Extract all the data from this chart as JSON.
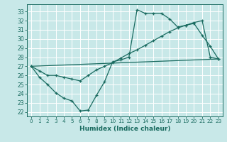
{
  "xlabel": "Humidex (Indice chaleur)",
  "bg_color": "#c8e8e8",
  "grid_color": "#ffffff",
  "line_color": "#1a6b60",
  "xlim": [
    -0.5,
    23.5
  ],
  "ylim": [
    21.5,
    33.8
  ],
  "yticks": [
    22,
    23,
    24,
    25,
    26,
    27,
    28,
    29,
    30,
    31,
    32,
    33
  ],
  "xticks": [
    0,
    1,
    2,
    3,
    4,
    5,
    6,
    7,
    8,
    9,
    10,
    11,
    12,
    13,
    14,
    15,
    16,
    17,
    18,
    19,
    20,
    21,
    22,
    23
  ],
  "line1_x": [
    0,
    1,
    2,
    3,
    4,
    5,
    6,
    7,
    8,
    9,
    10,
    11,
    12,
    13,
    14,
    15,
    16,
    17,
    18,
    19,
    20,
    21,
    22,
    23
  ],
  "line1_y": [
    27.0,
    25.8,
    25.0,
    24.1,
    23.5,
    23.2,
    22.1,
    22.2,
    23.8,
    25.3,
    27.5,
    27.7,
    28.0,
    33.2,
    32.8,
    32.8,
    32.8,
    32.2,
    31.3,
    31.5,
    31.7,
    30.4,
    29.2,
    27.8
  ],
  "line2_x": [
    0,
    1,
    2,
    3,
    4,
    5,
    6,
    7,
    8,
    9,
    10,
    11,
    12,
    13,
    14,
    15,
    16,
    17,
    18,
    19,
    20,
    21,
    22,
    23
  ],
  "line2_y": [
    27.0,
    26.5,
    26.0,
    26.0,
    25.8,
    25.6,
    25.4,
    26.0,
    26.6,
    27.0,
    27.4,
    27.9,
    28.4,
    28.8,
    29.3,
    29.8,
    30.3,
    30.8,
    31.2,
    31.5,
    31.8,
    32.0,
    28.0,
    27.8
  ],
  "line3_x": [
    0,
    23
  ],
  "line3_y": [
    27.0,
    27.8
  ]
}
